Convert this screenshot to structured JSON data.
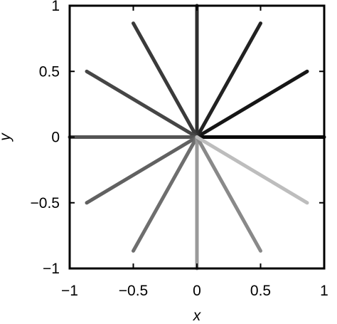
{
  "chart_data": {
    "type": "line",
    "title": "",
    "xlabel": "x",
    "ylabel": "y",
    "xlim": [
      -1,
      1
    ],
    "ylim": [
      -1,
      1
    ],
    "xticks": [
      -1,
      -0.5,
      0,
      0.5,
      1
    ],
    "xtick_labels": [
      "−1",
      "−0.5",
      "0",
      "0.5",
      "1"
    ],
    "yticks": [
      -1,
      -0.5,
      0,
      0.5,
      1
    ],
    "ytick_labels": [
      "−1",
      "−0.5",
      "0",
      "0.5",
      "1"
    ],
    "grid": false,
    "legend": "none",
    "series": [
      {
        "x": [
          0,
          1
        ],
        "y": [
          0,
          0
        ],
        "color": "#0a0a0a"
      },
      {
        "x": [
          0,
          0.866
        ],
        "y": [
          0,
          0.5
        ],
        "color": "#161616"
      },
      {
        "x": [
          0,
          0.5
        ],
        "y": [
          0,
          0.866
        ],
        "color": "#222222"
      },
      {
        "x": [
          0,
          0
        ],
        "y": [
          0,
          1
        ],
        "color": "#2e2e2e"
      },
      {
        "x": [
          0,
          -0.5
        ],
        "y": [
          0,
          0.866
        ],
        "color": "#3a3a3a"
      },
      {
        "x": [
          0,
          -0.866
        ],
        "y": [
          0,
          0.5
        ],
        "color": "#464646"
      },
      {
        "x": [
          0,
          -1
        ],
        "y": [
          0,
          0
        ],
        "color": "#555555"
      },
      {
        "x": [
          0,
          -0.866
        ],
        "y": [
          0,
          -0.5
        ],
        "color": "#616161"
      },
      {
        "x": [
          0,
          -0.5
        ],
        "y": [
          0,
          -0.866
        ],
        "color": "#6e6e6e"
      },
      {
        "x": [
          0,
          0
        ],
        "y": [
          0,
          -1
        ],
        "color": "#9a9a9a"
      },
      {
        "x": [
          0,
          0.5
        ],
        "y": [
          0,
          -0.866
        ],
        "color": "#898989"
      },
      {
        "x": [
          0,
          0.866
        ],
        "y": [
          0,
          -0.5
        ],
        "color": "#bdbdbd"
      }
    ]
  }
}
